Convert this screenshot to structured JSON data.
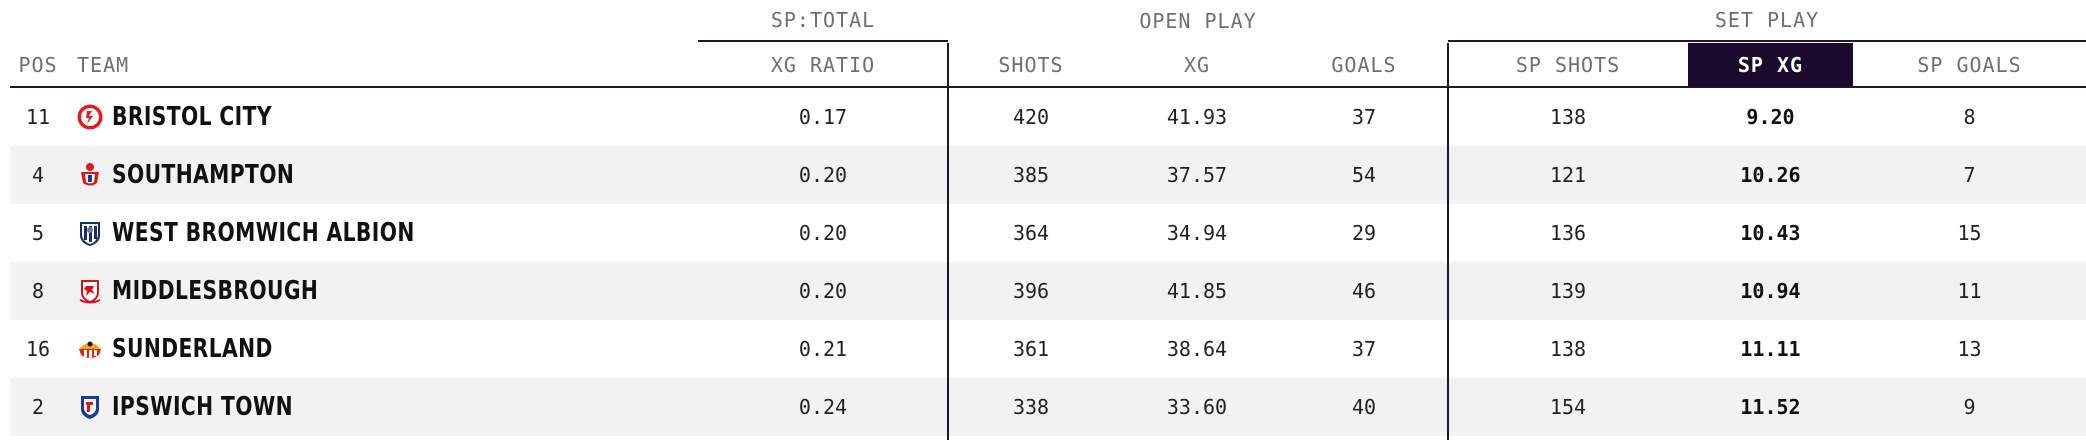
{
  "groups": {
    "sp_total": "SP:TOTAL",
    "open_play": "OPEN PLAY",
    "set_play": "SET PLAY"
  },
  "headers": {
    "pos": "POS",
    "team": "TEAM",
    "xg_ratio": "XG RATIO",
    "shots": "SHOTS",
    "xg": "XG",
    "goals": "GOALS",
    "sp_shots": "SP SHOTS",
    "sp_xg": "SP XG",
    "sp_goals": "SP GOALS"
  },
  "rows": [
    {
      "pos": "11",
      "team": "BRISTOL CITY",
      "crest": "bristol-city-crest",
      "xg_ratio": "0.17",
      "shots": "420",
      "xg": "41.93",
      "goals": "37",
      "sp_shots": "138",
      "sp_xg": "9.20",
      "sp_goals": "8"
    },
    {
      "pos": "4",
      "team": "SOUTHAMPTON",
      "crest": "southampton-crest",
      "xg_ratio": "0.20",
      "shots": "385",
      "xg": "37.57",
      "goals": "54",
      "sp_shots": "121",
      "sp_xg": "10.26",
      "sp_goals": "7"
    },
    {
      "pos": "5",
      "team": "WEST BROMWICH ALBION",
      "crest": "west-bromwich-albion-crest",
      "xg_ratio": "0.20",
      "shots": "364",
      "xg": "34.94",
      "goals": "29",
      "sp_shots": "136",
      "sp_xg": "10.43",
      "sp_goals": "15"
    },
    {
      "pos": "8",
      "team": "MIDDLESBROUGH",
      "crest": "middlesbrough-crest",
      "xg_ratio": "0.20",
      "shots": "396",
      "xg": "41.85",
      "goals": "46",
      "sp_shots": "139",
      "sp_xg": "10.94",
      "sp_goals": "11"
    },
    {
      "pos": "16",
      "team": "SUNDERLAND",
      "crest": "sunderland-crest",
      "xg_ratio": "0.21",
      "shots": "361",
      "xg": "38.64",
      "goals": "37",
      "sp_shots": "138",
      "sp_xg": "11.11",
      "sp_goals": "13"
    },
    {
      "pos": "2",
      "team": "IPSWICH TOWN",
      "crest": "ipswich-town-crest",
      "xg_ratio": "0.24",
      "shots": "338",
      "xg": "33.60",
      "goals": "40",
      "sp_shots": "154",
      "sp_xg": "11.52",
      "sp_goals": "9"
    }
  ],
  "colors": {
    "sorted_header_bg": "#1c0a2e",
    "rule": "#1a1a2e",
    "alt_row": "#f2f2f2"
  }
}
